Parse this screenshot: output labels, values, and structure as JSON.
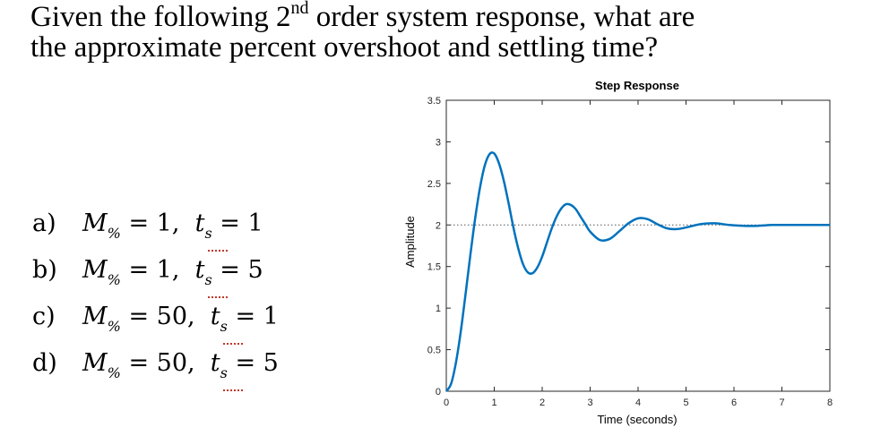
{
  "question": {
    "line1_pre": "Given the following 2",
    "line1_sup": "nd",
    "line1_post": " order system response, what are",
    "line2": "the approximate percent overshoot and settling time?"
  },
  "options": [
    {
      "letter": "a)",
      "m": "M",
      "m_sub": "%",
      "m_val": "= 1,",
      "t": "t",
      "t_sub": "s",
      "t_val": "= 1"
    },
    {
      "letter": "b)",
      "m": "M",
      "m_sub": "%",
      "m_val": "=  1,",
      "t": "t",
      "t_sub": "s",
      "t_val": "= 5"
    },
    {
      "letter": "c)",
      "m": "M",
      "m_sub": "%",
      "m_val": "= 50,",
      "t": "t",
      "t_sub": "s",
      "t_val": "= 1"
    },
    {
      "letter": "d)",
      "m": "M",
      "m_sub": "%",
      "m_val": "= 50,",
      "t": "t",
      "t_sub": "s",
      "t_val": "= 5"
    }
  ],
  "chart_data": {
    "type": "line",
    "title": "Step Response",
    "xlabel": "Time (seconds)",
    "ylabel": "Amplitude",
    "xlim": [
      0,
      8
    ],
    "ylim": [
      0,
      3.5
    ],
    "xticks": [
      "0",
      "1",
      "2",
      "3",
      "4",
      "5",
      "6",
      "7",
      "8"
    ],
    "yticks": [
      "0",
      "0.5",
      "1",
      "1.5",
      "2",
      "2.5",
      "3",
      "3.5"
    ],
    "reference_line": 2,
    "line_color": "#0072bd",
    "series": [
      {
        "x": [
          0,
          0.1,
          0.2,
          0.3,
          0.4,
          0.5,
          0.6,
          0.7,
          0.8,
          0.9,
          1.0,
          1.1,
          1.2,
          1.3,
          1.4,
          1.5,
          1.6,
          1.7,
          1.8,
          1.9,
          2.0,
          2.1,
          2.2,
          2.3,
          2.4,
          2.5,
          2.6,
          2.7,
          2.8,
          2.9,
          3.0,
          3.2,
          3.4,
          3.6,
          3.8,
          4.0,
          4.2,
          4.4,
          4.6,
          4.8,
          5.0,
          5.3,
          5.6,
          5.9,
          6.2,
          6.5,
          6.8,
          7.1,
          7.4,
          7.7,
          8.0
        ],
        "y": [
          0,
          0.09,
          0.34,
          0.71,
          1.16,
          1.63,
          2.07,
          2.44,
          2.71,
          2.85,
          2.86,
          2.74,
          2.53,
          2.26,
          1.97,
          1.72,
          1.53,
          1.43,
          1.42,
          1.49,
          1.62,
          1.79,
          1.96,
          2.1,
          2.2,
          2.25,
          2.24,
          2.19,
          2.1,
          2.01,
          1.92,
          1.82,
          1.83,
          1.92,
          2.02,
          2.08,
          2.07,
          2.01,
          1.96,
          1.95,
          1.97,
          2.01,
          2.02,
          2.0,
          1.99,
          1.99,
          2.0,
          2.0,
          2.0,
          2.0,
          2.0
        ]
      }
    ]
  }
}
